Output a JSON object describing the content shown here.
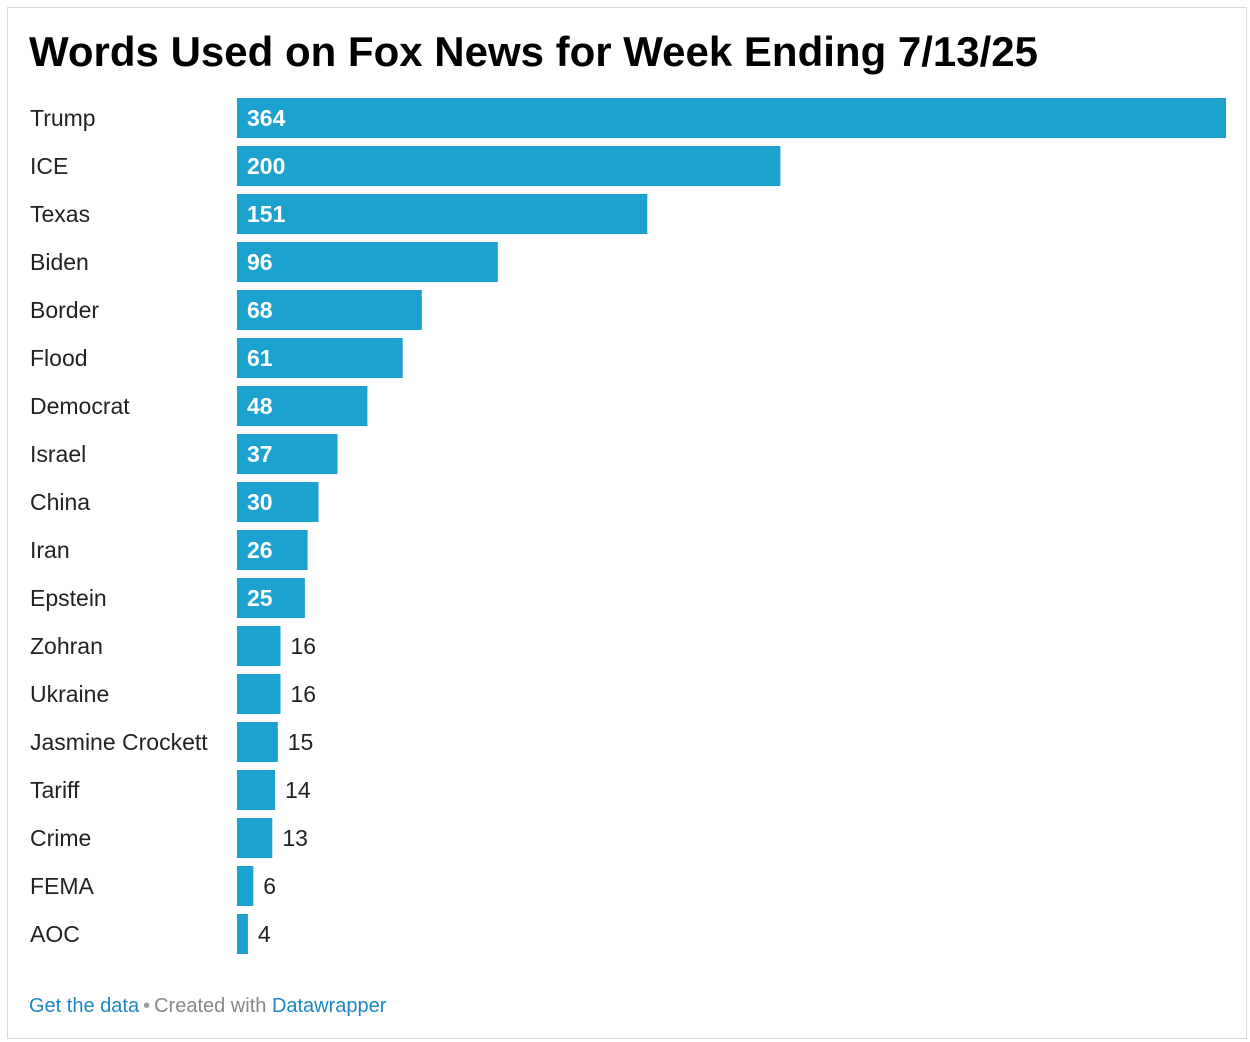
{
  "title": "Words Used on Fox News for Week Ending 7/13/25",
  "footer": {
    "get_data_label": "Get the data",
    "separator": "•",
    "created_with": "Created with",
    "datawrapper_label": "Datawrapper",
    "link_color": "#1d87c5"
  },
  "colors": {
    "bar": "#1ba2cf",
    "label": "#222222",
    "value_inside": "#ffffff",
    "value_outside": "#222222"
  },
  "chart_data": {
    "type": "bar",
    "orientation": "horizontal",
    "title": "Words Used on Fox News for Week Ending 7/13/25",
    "categories": [
      "Trump",
      "ICE",
      "Texas",
      "Biden",
      "Border",
      "Flood",
      "Democrat",
      "Israel",
      "China",
      "Iran",
      "Epstein",
      "Zohran",
      "Ukraine",
      "Jasmine Crockett",
      "Tariff",
      "Crime",
      "FEMA",
      "AOC"
    ],
    "values": [
      364,
      200,
      151,
      96,
      68,
      61,
      48,
      37,
      30,
      26,
      25,
      16,
      16,
      15,
      14,
      13,
      6,
      4
    ],
    "xlim": [
      0,
      364
    ],
    "data_labels": true,
    "grid": false,
    "legend": "none"
  }
}
